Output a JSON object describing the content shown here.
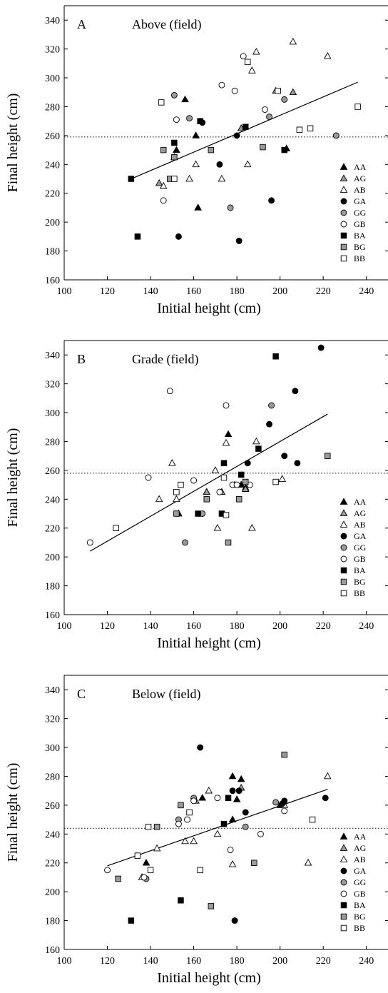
{
  "chart_data": [
    {
      "type": "scatter",
      "panel_letter": "A",
      "title": "Above (field)",
      "xlabel": "Initial height (cm)",
      "ylabel": "Final height (cm)",
      "xlim": [
        100,
        250
      ],
      "ylim": [
        160,
        350
      ],
      "xticks": [
        100,
        120,
        140,
        160,
        180,
        200,
        220,
        240
      ],
      "yticks": [
        160,
        180,
        200,
        220,
        240,
        260,
        280,
        300,
        320,
        340
      ],
      "mean_line_y": 259,
      "regression": {
        "x": [
          131,
          236
        ],
        "y": [
          230,
          297
        ]
      },
      "legend_position": "right",
      "series": [
        {
          "name": "AA",
          "marker": "triangle",
          "fill": "#000000",
          "points": [
            [
              152,
              250
            ],
            [
              156,
              285
            ],
            [
              161,
              260
            ],
            [
              162,
              210
            ],
            [
              203,
              251
            ]
          ]
        },
        {
          "name": "AG",
          "marker": "triangle",
          "fill": "#9a9a9a",
          "points": [
            [
              144,
              227
            ],
            [
              182,
              265
            ],
            [
              198,
              291
            ],
            [
              206,
              290
            ]
          ]
        },
        {
          "name": "AB",
          "marker": "triangle",
          "fill": "#ffffff",
          "points": [
            [
              146,
              225
            ],
            [
              151,
              245
            ],
            [
              158,
              230
            ],
            [
              161,
              240
            ],
            [
              173,
              230
            ],
            [
              185,
              240
            ],
            [
              187,
              305
            ],
            [
              189,
              318
            ],
            [
              206,
              325
            ],
            [
              222,
              315
            ]
          ]
        },
        {
          "name": "GA",
          "marker": "circle",
          "fill": "#000000",
          "points": [
            [
              153,
              190
            ],
            [
              164,
              269
            ],
            [
              172,
              240
            ],
            [
              180,
              260
            ],
            [
              181,
              187
            ],
            [
              196,
              215
            ]
          ]
        },
        {
          "name": "GG",
          "marker": "circle",
          "fill": "#9a9a9a",
          "points": [
            [
              151,
              288
            ],
            [
              158,
              272
            ],
            [
              177,
              210
            ],
            [
              195,
              273
            ],
            [
              202,
              285
            ],
            [
              226,
              260
            ]
          ]
        },
        {
          "name": "GB",
          "marker": "circle",
          "fill": "#ffffff",
          "points": [
            [
              146,
              215
            ],
            [
              152,
              271
            ],
            [
              173,
              295
            ],
            [
              179,
              291
            ],
            [
              183,
              315
            ],
            [
              193,
              278
            ]
          ]
        },
        {
          "name": "BA",
          "marker": "square",
          "fill": "#000000",
          "points": [
            [
              131,
              230
            ],
            [
              134,
              190
            ],
            [
              151,
              255
            ],
            [
              163,
              270
            ],
            [
              184,
              266
            ],
            [
              202,
              250
            ]
          ]
        },
        {
          "name": "BG",
          "marker": "square",
          "fill": "#9a9a9a",
          "points": [
            [
              146,
              250
            ],
            [
              149,
              230
            ],
            [
              151,
              245
            ],
            [
              168,
              250
            ],
            [
              192,
              252
            ]
          ]
        },
        {
          "name": "BB",
          "marker": "square",
          "fill": "#ffffff",
          "points": [
            [
              145,
              283
            ],
            [
              151,
              230
            ],
            [
              185,
              311
            ],
            [
              199,
              291
            ],
            [
              209,
              264
            ],
            [
              214,
              265
            ],
            [
              236,
              280
            ]
          ]
        }
      ]
    },
    {
      "type": "scatter",
      "panel_letter": "B",
      "title": "Grade (field)",
      "xlabel": "Initial height (cm)",
      "ylabel": "Final height (cm)",
      "xlim": [
        100,
        250
      ],
      "ylim": [
        160,
        350
      ],
      "xticks": [
        100,
        120,
        140,
        160,
        180,
        200,
        220,
        240
      ],
      "yticks": [
        160,
        180,
        200,
        220,
        240,
        260,
        280,
        300,
        320,
        340
      ],
      "mean_line_y": 258,
      "regression": {
        "x": [
          112,
          222
        ],
        "y": [
          204,
          299
        ]
      },
      "legend_position": "right",
      "series": [
        {
          "name": "AA",
          "marker": "triangle",
          "fill": "#000000",
          "points": [
            [
              153,
              230
            ],
            [
              166,
              245
            ],
            [
              176,
              285
            ],
            [
              182,
              250
            ],
            [
              184,
              248
            ]
          ]
        },
        {
          "name": "AG",
          "marker": "triangle",
          "fill": "#9a9a9a",
          "points": [
            [
              166,
              245
            ],
            [
              173,
              245
            ],
            [
              184,
              247
            ]
          ]
        },
        {
          "name": "AB",
          "marker": "triangle",
          "fill": "#ffffff",
          "points": [
            [
              144,
              240
            ],
            [
              150,
              265
            ],
            [
              152,
              240
            ],
            [
              170,
              260
            ],
            [
              171,
              220
            ],
            [
              175,
              279
            ],
            [
              179,
              250
            ],
            [
              187,
              220
            ],
            [
              189,
              280
            ],
            [
              201,
              254
            ]
          ]
        },
        {
          "name": "GA",
          "marker": "circle",
          "fill": "#000000",
          "points": [
            [
              185,
              265
            ],
            [
              195,
              292
            ],
            [
              202,
              270
            ],
            [
              207,
              315
            ],
            [
              208,
              265
            ],
            [
              219,
              345
            ]
          ]
        },
        {
          "name": "GG",
          "marker": "circle",
          "fill": "#9a9a9a",
          "points": [
            [
              156,
              210
            ],
            [
              196,
              305
            ],
            [
              164,
              230
            ]
          ]
        },
        {
          "name": "GB",
          "marker": "circle",
          "fill": "#ffffff",
          "points": [
            [
              112,
              210
            ],
            [
              139,
              255
            ],
            [
              149,
              315
            ],
            [
              160,
              253
            ],
            [
              172,
              245
            ],
            [
              175,
              305
            ],
            [
              178,
              250
            ],
            [
              180,
              250
            ],
            [
              186,
              250
            ]
          ]
        },
        {
          "name": "BA",
          "marker": "square",
          "fill": "#000000",
          "points": [
            [
              162,
              230
            ],
            [
              173,
              230
            ],
            [
              174,
              265
            ],
            [
              182,
              257
            ],
            [
              190,
              275
            ],
            [
              198,
              339
            ]
          ]
        },
        {
          "name": "BG",
          "marker": "square",
          "fill": "#9a9a9a",
          "points": [
            [
              152,
              230
            ],
            [
              166,
              240
            ],
            [
              176,
              210
            ],
            [
              181,
              240
            ],
            [
              184,
              252
            ],
            [
              222,
              270
            ]
          ]
        },
        {
          "name": "BB",
          "marker": "square",
          "fill": "#ffffff",
          "points": [
            [
              124,
              220
            ],
            [
              152,
              245
            ],
            [
              154,
              250
            ],
            [
              174,
              255
            ],
            [
              175,
              229
            ],
            [
              198,
              252
            ]
          ]
        }
      ]
    },
    {
      "type": "scatter",
      "panel_letter": "C",
      "title": "Below (field)",
      "xlabel": "Initial height (cm)",
      "ylabel": "Final height (cm)",
      "xlim": [
        100,
        250
      ],
      "ylim": [
        160,
        350
      ],
      "xticks": [
        100,
        120,
        140,
        160,
        180,
        200,
        220,
        240
      ],
      "yticks": [
        160,
        180,
        200,
        220,
        240,
        260,
        280,
        300,
        320,
        340
      ],
      "mean_line_y": 244,
      "regression": {
        "x": [
          120,
          222
        ],
        "y": [
          218,
          271
        ]
      },
      "legend_position": "right",
      "series": [
        {
          "name": "AA",
          "marker": "triangle",
          "fill": "#000000",
          "points": [
            [
              138,
              220
            ],
            [
              164,
              265
            ],
            [
              178,
              250
            ],
            [
              178,
              280
            ],
            [
              180,
              264
            ],
            [
              182,
              278
            ],
            [
              200,
              260
            ]
          ]
        },
        {
          "name": "AG",
          "marker": "triangle",
          "fill": "#9a9a9a",
          "points": [
            [
              161,
              263
            ],
            [
              182,
              272
            ]
          ]
        },
        {
          "name": "AB",
          "marker": "triangle",
          "fill": "#ffffff",
          "points": [
            [
              136,
              210
            ],
            [
              143,
              230
            ],
            [
              156,
              235
            ],
            [
              160,
              235
            ],
            [
              167,
              270
            ],
            [
              171,
              240
            ],
            [
              178,
              219
            ],
            [
              202,
              260
            ],
            [
              213,
              220
            ],
            [
              222,
              280
            ]
          ]
        },
        {
          "name": "GA",
          "marker": "circle",
          "fill": "#000000",
          "points": [
            [
              163,
              300
            ],
            [
              178,
              270
            ],
            [
              179,
              180
            ],
            [
              181,
              270
            ],
            [
              184,
              255
            ],
            [
              201,
              261
            ],
            [
              202,
              263
            ],
            [
              221,
              265
            ]
          ]
        },
        {
          "name": "GG",
          "marker": "circle",
          "fill": "#9a9a9a",
          "points": [
            [
              138,
              209
            ],
            [
              153,
              250
            ],
            [
              160,
              265
            ],
            [
              184,
              245
            ],
            [
              198,
              262
            ]
          ]
        },
        {
          "name": "GB",
          "marker": "circle",
          "fill": "#ffffff",
          "points": [
            [
              120,
              215
            ],
            [
              137,
              210
            ],
            [
              153,
              247
            ],
            [
              157,
              250
            ],
            [
              160,
              263
            ],
            [
              171,
              265
            ],
            [
              177,
              229
            ],
            [
              191,
              240
            ],
            [
              202,
              256
            ]
          ]
        },
        {
          "name": "BA",
          "marker": "square",
          "fill": "#000000",
          "points": [
            [
              131,
              180
            ],
            [
              154,
              194
            ],
            [
              174,
              247
            ],
            [
              176,
              265
            ]
          ]
        },
        {
          "name": "BG",
          "marker": "square",
          "fill": "#9a9a9a",
          "points": [
            [
              125,
              209
            ],
            [
              143,
              245
            ],
            [
              154,
              260
            ],
            [
              168,
              190
            ],
            [
              188,
              220
            ],
            [
              202,
              295
            ]
          ]
        },
        {
          "name": "BB",
          "marker": "square",
          "fill": "#ffffff",
          "points": [
            [
              134,
              225
            ],
            [
              139,
              245
            ],
            [
              140,
              215
            ],
            [
              158,
              255
            ],
            [
              163,
              215
            ],
            [
              215,
              250
            ]
          ]
        }
      ]
    }
  ]
}
